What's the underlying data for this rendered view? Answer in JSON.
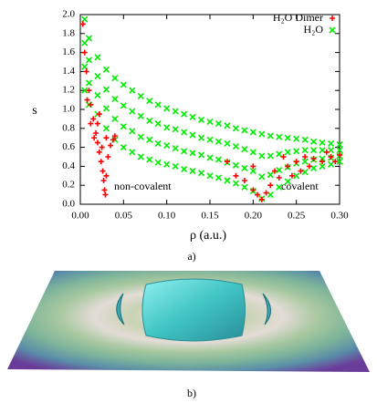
{
  "chart_data": {
    "type": "scatter",
    "x_label": "ρ (a.u.)",
    "y_label": "s",
    "xlim": [
      0,
      0.3
    ],
    "ylim": [
      0,
      2.0
    ],
    "xticks": [
      {
        "value": 0,
        "label": "0.00"
      },
      {
        "value": 0.05,
        "label": "0.05"
      },
      {
        "value": 0.1,
        "label": "0.10"
      },
      {
        "value": 0.15,
        "label": "0.15"
      },
      {
        "value": 0.2,
        "label": "0.20"
      },
      {
        "value": 0.25,
        "label": "0.25"
      },
      {
        "value": 0.3,
        "label": "0.30"
      }
    ],
    "yticks": [
      {
        "value": 0,
        "label": "0.0"
      },
      {
        "value": 0.2,
        "label": "0.2"
      },
      {
        "value": 0.4,
        "label": "0.4"
      },
      {
        "value": 0.6,
        "label": "0.6"
      },
      {
        "value": 0.8,
        "label": "0.8"
      },
      {
        "value": 1.0,
        "label": "1.0"
      },
      {
        "value": 1.2,
        "label": "1.2"
      },
      {
        "value": 1.4,
        "label": "1.4"
      },
      {
        "value": 1.6,
        "label": "1.6"
      },
      {
        "value": 1.8,
        "label": "1.8"
      },
      {
        "value": 2.0,
        "label": "2.0"
      }
    ],
    "legend": "upper right",
    "annotations": [
      "non-covalent",
      "covalent"
    ],
    "caption": "a)",
    "series": [
      {
        "name": "H₂O Dimer",
        "color": "#ff0000",
        "marker": "+",
        "x": [
          0.003,
          0.005,
          0.007,
          0.01,
          0.012,
          0.015,
          0.018,
          0.02,
          0.022,
          0.024,
          0.026,
          0.027,
          0.028,
          0.029,
          0.03,
          0.032,
          0.035,
          0.038,
          0.04,
          0.008,
          0.012,
          0.016,
          0.02,
          0.025,
          0.03,
          0.022,
          0.18,
          0.19,
          0.2,
          0.205,
          0.21,
          0.215,
          0.22,
          0.225,
          0.23,
          0.24,
          0.245,
          0.25,
          0.255,
          0.26,
          0.265,
          0.27,
          0.28,
          0.285,
          0.29,
          0.295,
          0.3,
          0.17,
          0.2,
          0.235
        ],
        "values": [
          1.9,
          1.6,
          1.4,
          1.2,
          1.05,
          0.9,
          0.75,
          0.65,
          0.55,
          0.45,
          0.35,
          0.25,
          0.15,
          0.1,
          0.3,
          0.5,
          0.62,
          0.68,
          0.72,
          1.1,
          0.85,
          0.7,
          0.85,
          0.6,
          0.7,
          0.95,
          0.3,
          0.25,
          0.15,
          0.1,
          0.05,
          0.12,
          0.2,
          0.35,
          0.28,
          0.4,
          0.3,
          0.45,
          0.35,
          0.5,
          0.4,
          0.48,
          0.45,
          0.55,
          0.5,
          0.45,
          0.52,
          0.45,
          0.4,
          0.5
        ]
      },
      {
        "name": "H₂O",
        "color": "#00ee00",
        "marker": "x",
        "x": [
          0.005,
          0.005,
          0.005,
          0.005,
          0.01,
          0.01,
          0.01,
          0.01,
          0.02,
          0.02,
          0.02,
          0.02,
          0.03,
          0.03,
          0.03,
          0.03,
          0.04,
          0.04,
          0.04,
          0.04,
          0.05,
          0.05,
          0.05,
          0.05,
          0.06,
          0.06,
          0.06,
          0.06,
          0.07,
          0.07,
          0.07,
          0.07,
          0.08,
          0.08,
          0.08,
          0.08,
          0.09,
          0.09,
          0.09,
          0.09,
          0.1,
          0.1,
          0.1,
          0.1,
          0.11,
          0.11,
          0.11,
          0.11,
          0.12,
          0.12,
          0.12,
          0.12,
          0.13,
          0.13,
          0.13,
          0.13,
          0.14,
          0.14,
          0.14,
          0.14,
          0.15,
          0.15,
          0.15,
          0.15,
          0.16,
          0.16,
          0.16,
          0.16,
          0.17,
          0.17,
          0.17,
          0.17,
          0.18,
          0.18,
          0.18,
          0.18,
          0.19,
          0.19,
          0.19,
          0.19,
          0.2,
          0.2,
          0.2,
          0.2,
          0.21,
          0.21,
          0.21,
          0.21,
          0.22,
          0.22,
          0.22,
          0.22,
          0.23,
          0.23,
          0.23,
          0.23,
          0.24,
          0.24,
          0.24,
          0.24,
          0.25,
          0.25,
          0.25,
          0.25,
          0.26,
          0.26,
          0.26,
          0.26,
          0.27,
          0.27,
          0.27,
          0.27,
          0.28,
          0.28,
          0.28,
          0.28,
          0.29,
          0.29,
          0.29,
          0.29,
          0.3,
          0.3,
          0.3,
          0.3
        ],
        "values": [
          1.2,
          1.45,
          1.7,
          1.95,
          1.05,
          1.28,
          1.52,
          1.75,
          0.95,
          1.15,
          1.35,
          1.55,
          0.8,
          1.01,
          1.21,
          1.42,
          0.68,
          0.9,
          1.11,
          1.33,
          0.6,
          0.82,
          1.04,
          1.26,
          0.55,
          0.77,
          0.98,
          1.2,
          0.5,
          0.71,
          0.93,
          1.14,
          0.47,
          0.68,
          0.88,
          1.09,
          0.44,
          0.64,
          0.85,
          1.05,
          0.42,
          0.62,
          0.81,
          1.01,
          0.4,
          0.59,
          0.79,
          0.98,
          0.37,
          0.56,
          0.76,
          0.95,
          0.35,
          0.54,
          0.73,
          0.92,
          0.33,
          0.52,
          0.7,
          0.89,
          0.3,
          0.49,
          0.68,
          0.87,
          0.28,
          0.47,
          0.66,
          0.85,
          0.25,
          0.44,
          0.64,
          0.83,
          0.22,
          0.41,
          0.61,
          0.8,
          0.18,
          0.38,
          0.58,
          0.78,
          0.14,
          0.35,
          0.55,
          0.76,
          0.06,
          0.29,
          0.51,
          0.74,
          0.1,
          0.31,
          0.51,
          0.72,
          0.18,
          0.36,
          0.53,
          0.71,
          0.24,
          0.39,
          0.55,
          0.7,
          0.3,
          0.43,
          0.56,
          0.69,
          0.34,
          0.45,
          0.57,
          0.68,
          0.38,
          0.47,
          0.57,
          0.66,
          0.4,
          0.48,
          0.57,
          0.65,
          0.42,
          0.49,
          0.57,
          0.64,
          0.45,
          0.51,
          0.57,
          0.63
        ]
      }
    ]
  },
  "figure_b": {
    "caption": "b)"
  }
}
